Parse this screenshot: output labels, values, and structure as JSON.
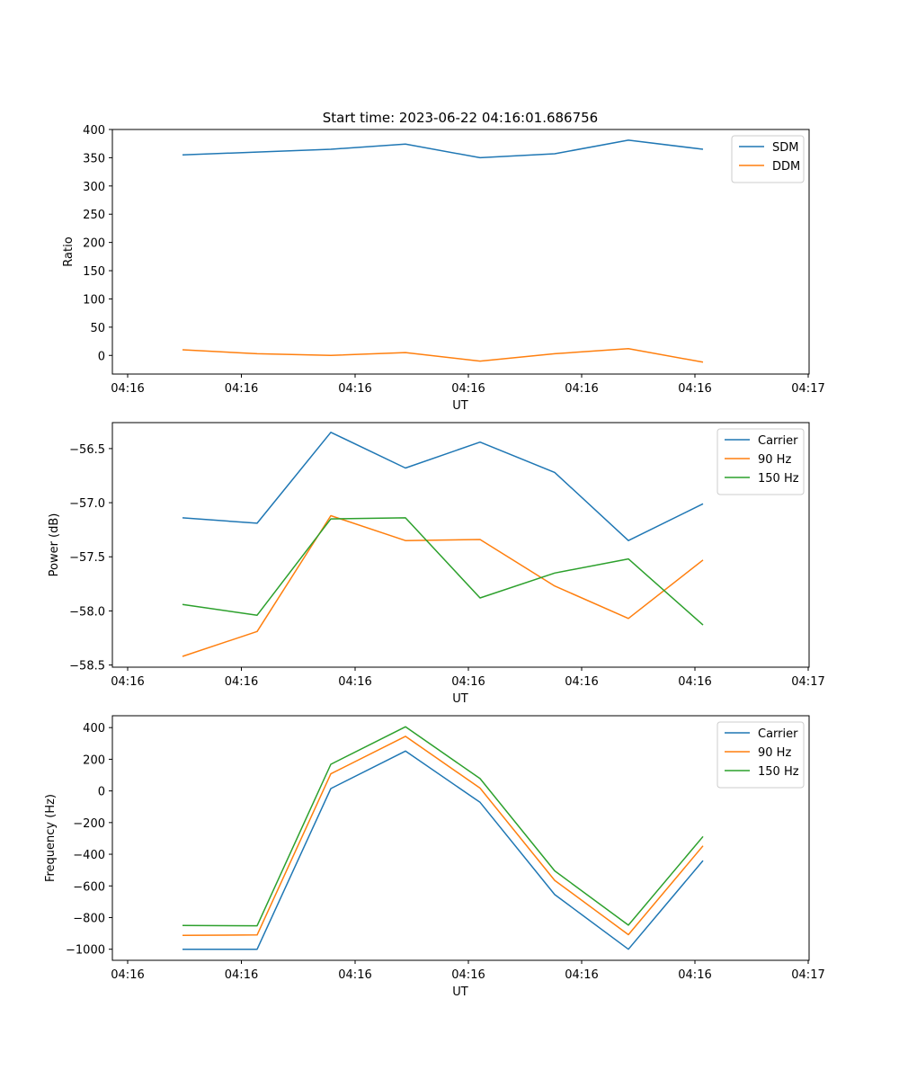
{
  "figure_title": "Start time: 2023-06-22 04:16:01.686756",
  "colors": {
    "c0": "#1f77b4",
    "c1": "#ff7f0e",
    "c2": "#2ca02c"
  },
  "chart_data": [
    {
      "type": "line",
      "title": "Start time: 2023-06-22 04:16:01.686756",
      "xlabel": "UT",
      "ylabel": "Ratio",
      "x_tick_labels": [
        "04:16",
        "04:16",
        "04:16",
        "04:16",
        "04:16",
        "04:16",
        "04:16",
        "04:17"
      ],
      "y_ticks": [
        0,
        50,
        100,
        150,
        200,
        250,
        300,
        350,
        400
      ],
      "y_tick_labels": [
        "0",
        "50",
        "100",
        "150",
        "200",
        "250",
        "300",
        "350",
        "400"
      ],
      "ylim": [
        -33,
        400
      ],
      "grid": false,
      "legend_position": "upper right",
      "series": [
        {
          "name": "SDM",
          "color": "#1f77b4",
          "values": [
            355,
            360,
            365,
            374,
            350,
            357,
            381,
            365
          ]
        },
        {
          "name": "DDM",
          "color": "#ff7f0e",
          "values": [
            10,
            3,
            0,
            5,
            -10,
            3,
            12,
            -12
          ]
        }
      ]
    },
    {
      "type": "line",
      "title": "",
      "xlabel": "UT",
      "ylabel": "Power (dB)",
      "x_tick_labels": [
        "04:16",
        "04:16",
        "04:16",
        "04:16",
        "04:16",
        "04:16",
        "04:16",
        "04:17"
      ],
      "y_ticks": [
        -58.5,
        -58.0,
        -57.5,
        -57.0,
        -56.5
      ],
      "y_tick_labels": [
        "−58.5",
        "−58.0",
        "−57.5",
        "−57.0",
        "−56.5"
      ],
      "ylim": [
        -58.52,
        -56.26
      ],
      "grid": false,
      "legend_position": "upper right",
      "series": [
        {
          "name": "Carrier",
          "color": "#1f77b4",
          "values": [
            -57.14,
            -57.19,
            -56.35,
            -56.68,
            -56.44,
            -56.72,
            -57.35,
            -57.01
          ]
        },
        {
          "name": "90 Hz",
          "color": "#ff7f0e",
          "values": [
            -58.42,
            -58.19,
            -57.12,
            -57.35,
            -57.34,
            -57.77,
            -58.07,
            -57.53
          ]
        },
        {
          "name": "150 Hz",
          "color": "#2ca02c",
          "values": [
            -57.94,
            -58.04,
            -57.15,
            -57.14,
            -57.88,
            -57.65,
            -57.52,
            -58.13
          ]
        }
      ]
    },
    {
      "type": "line",
      "title": "",
      "xlabel": "UT",
      "ylabel": "Frequency (Hz)",
      "x_tick_labels": [
        "04:16",
        "04:16",
        "04:16",
        "04:16",
        "04:16",
        "04:16",
        "04:16",
        "04:17"
      ],
      "y_ticks": [
        -1000,
        -800,
        -600,
        -400,
        -200,
        0,
        200,
        400
      ],
      "y_tick_labels": [
        "−1000",
        "−800",
        "−600",
        "−400",
        "−200",
        "0",
        "200",
        "400"
      ],
      "ylim": [
        -1070,
        475
      ],
      "grid": false,
      "legend_position": "upper right",
      "series": [
        {
          "name": "Carrier",
          "color": "#1f77b4",
          "values": [
            -1000,
            -1000,
            15,
            252,
            -72,
            -655,
            -1000,
            -440
          ]
        },
        {
          "name": "90 Hz",
          "color": "#ff7f0e",
          "values": [
            -912,
            -910,
            108,
            345,
            18,
            -565,
            -908,
            -347
          ]
        },
        {
          "name": "150 Hz",
          "color": "#2ca02c",
          "values": [
            -850,
            -852,
            168,
            405,
            78,
            -505,
            -848,
            -288
          ]
        }
      ]
    }
  ]
}
